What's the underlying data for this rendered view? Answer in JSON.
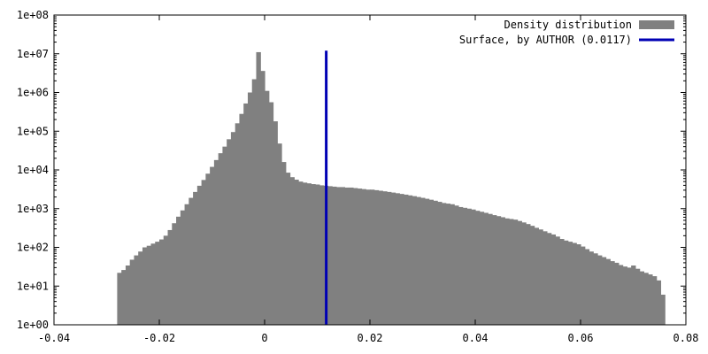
{
  "chart_data": {
    "type": "bar",
    "scale": {
      "y": "log10"
    },
    "xlim": [
      -0.04,
      0.08
    ],
    "ylim": [
      1,
      100000000
    ],
    "xticks": [
      -0.04,
      -0.02,
      0,
      0.02,
      0.04,
      0.06,
      0.08
    ],
    "xtick_labels": [
      "-0.04",
      "-0.02",
      "0",
      "0.02",
      "0.04",
      "0.06",
      "0.08"
    ],
    "yticks": [
      1,
      10,
      100,
      1000,
      10000,
      100000,
      1000000,
      10000000,
      100000000
    ],
    "ytick_labels": [
      "1e+00",
      "1e+01",
      "1e+02",
      "1e+03",
      "1e+04",
      "1e+05",
      "1e+06",
      "1e+07",
      "1e+08"
    ],
    "grid": false,
    "legend_position": "top-right",
    "series": [
      {
        "name": "Density distribution",
        "kind": "histogram",
        "color": "#808080",
        "bin_width": 0.0008,
        "bin_start": -0.028,
        "values": [
          22,
          26,
          34,
          48,
          62,
          78,
          100,
          110,
          125,
          140,
          160,
          200,
          280,
          420,
          620,
          900,
          1300,
          1900,
          2700,
          3900,
          5500,
          8000,
          12000,
          18000,
          27000,
          40000,
          62000,
          95000,
          160000,
          280000,
          520000,
          1000000,
          2200000,
          11000000,
          3600000,
          1100000,
          560000,
          180000,
          48000,
          16000,
          8500,
          6500,
          5600,
          5000,
          4700,
          4500,
          4300,
          4200,
          4000,
          3900,
          3800,
          3700,
          3600,
          3600,
          3500,
          3500,
          3400,
          3300,
          3200,
          3100,
          3100,
          3000,
          2900,
          2800,
          2700,
          2600,
          2500,
          2400,
          2300,
          2200,
          2100,
          2000,
          1900,
          1800,
          1700,
          1600,
          1500,
          1400,
          1350,
          1300,
          1200,
          1100,
          1050,
          1000,
          950,
          880,
          830,
          780,
          730,
          680,
          640,
          600,
          560,
          540,
          520,
          480,
          440,
          400,
          360,
          320,
          290,
          260,
          235,
          215,
          190,
          165,
          150,
          140,
          130,
          120,
          105,
          90,
          78,
          70,
          62,
          56,
          50,
          44,
          40,
          35,
          32,
          30,
          34,
          28,
          24,
          22,
          20,
          18,
          14,
          6
        ]
      },
      {
        "name": "Surface, by AUTHOR (0.0117)",
        "kind": "vline",
        "color": "#0000b4",
        "x": 0.0117,
        "y_top": 12000000
      }
    ]
  }
}
